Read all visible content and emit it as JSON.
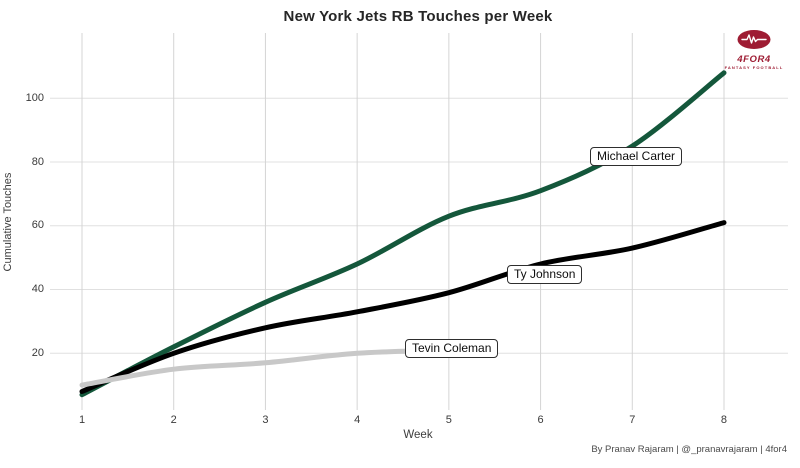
{
  "title": "New York Jets RB Touches per Week",
  "attribution": "By Pranav Rajaram | @_pranavrajaram | 4for4",
  "logo": {
    "brand": "4FOR4",
    "tagline": "FANTASY FOOTBALL",
    "color": "#9e1c33"
  },
  "chart_data": {
    "type": "line",
    "title": "New York Jets RB Touches per Week",
    "xlabel": "Week",
    "ylabel": "Cumulative Touches",
    "x_ticks": [
      1,
      2,
      3,
      4,
      5,
      6,
      7,
      8
    ],
    "y_ticks": [
      20,
      40,
      60,
      80,
      100
    ],
    "xlim": [
      1,
      8
    ],
    "ylim": [
      0,
      120
    ],
    "grid": true,
    "legend": "inline-line-labels",
    "background": "#ffffff",
    "gridline_color_h": "#e0e0e0",
    "gridline_color_v": "#d4d4d4",
    "series": [
      {
        "name": "Michael Carter",
        "color": "#14573b",
        "x": [
          1,
          2,
          3,
          4,
          5,
          6,
          7,
          8
        ],
        "values": [
          7,
          22,
          36,
          48,
          63,
          71,
          85,
          108
        ]
      },
      {
        "name": "Ty Johnson",
        "color": "#000000",
        "x": [
          1,
          2,
          3,
          4,
          5,
          6,
          7,
          8
        ],
        "values": [
          8,
          20,
          28,
          33,
          39,
          48,
          53,
          61
        ]
      },
      {
        "name": "Tevin Coleman",
        "color": "#c8c8c8",
        "x": [
          1,
          2,
          3,
          4,
          5
        ],
        "values": [
          10,
          15,
          17,
          20,
          21
        ]
      }
    ]
  }
}
